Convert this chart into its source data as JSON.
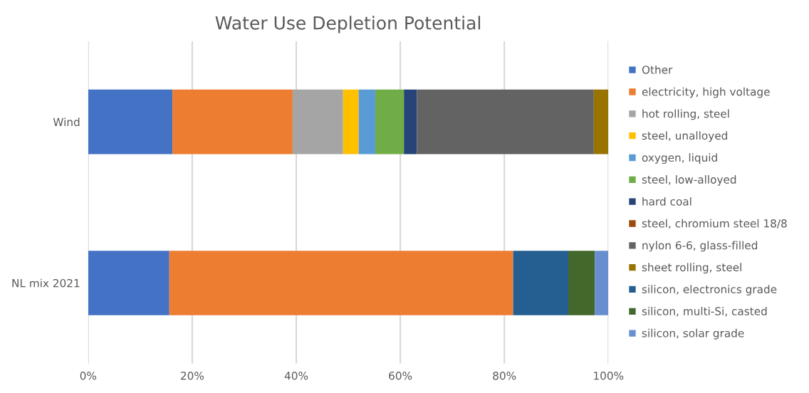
{
  "chart_data": {
    "type": "bar",
    "orientation": "horizontal",
    "stacked": true,
    "title": "Water Use Depletion Potential",
    "categories": [
      "Wind",
      "NL mix 2021"
    ],
    "series": [
      {
        "name": "Other",
        "color": "#4472c4",
        "values": [
          16.2,
          15.6
        ]
      },
      {
        "name": "electricity, high voltage",
        "color": "#ed7d31",
        "values": [
          23.1,
          66.1
        ]
      },
      {
        "name": "hot rolling, steel",
        "color": "#a5a5a5",
        "values": [
          9.7,
          null
        ]
      },
      {
        "name": "steel, unalloyed",
        "color": "#ffc000",
        "values": [
          3.0,
          null
        ]
      },
      {
        "name": "oxygen, liquid",
        "color": "#5b9bd5",
        "values": [
          3.2,
          null
        ]
      },
      {
        "name": "steel, low-alloyed",
        "color": "#70ad47",
        "values": [
          5.5,
          null
        ]
      },
      {
        "name": "hard coal",
        "color": "#264478",
        "values": [
          2.5,
          null
        ]
      },
      {
        "name": "steel, chromium steel 18/8",
        "color": "#9e480e",
        "values": [
          null,
          null
        ]
      },
      {
        "name": "nylon 6-6, glass-filled",
        "color": "#636363",
        "values": [
          34.0,
          null
        ]
      },
      {
        "name": "sheet rolling, steel",
        "color": "#997300",
        "values": [
          2.8,
          null
        ]
      },
      {
        "name": "silicon, electronics grade",
        "color": "#255e91",
        "values": [
          null,
          10.6
        ]
      },
      {
        "name": "silicon, multi-Si, casted",
        "color": "#43682b",
        "values": [
          null,
          5.1
        ]
      },
      {
        "name": "silicon, solar grade",
        "color": "#698ed0",
        "values": [
          null,
          2.6
        ]
      }
    ],
    "xlim": [
      0,
      100
    ],
    "xticks": [
      {
        "value": 0,
        "label": "0%"
      },
      {
        "value": 20,
        "label": "20%"
      },
      {
        "value": 40,
        "label": "40%"
      },
      {
        "value": 60,
        "label": "60%"
      },
      {
        "value": 80,
        "label": "80%"
      },
      {
        "value": 100,
        "label": "100%"
      }
    ],
    "grid": "x",
    "legend": "right"
  }
}
